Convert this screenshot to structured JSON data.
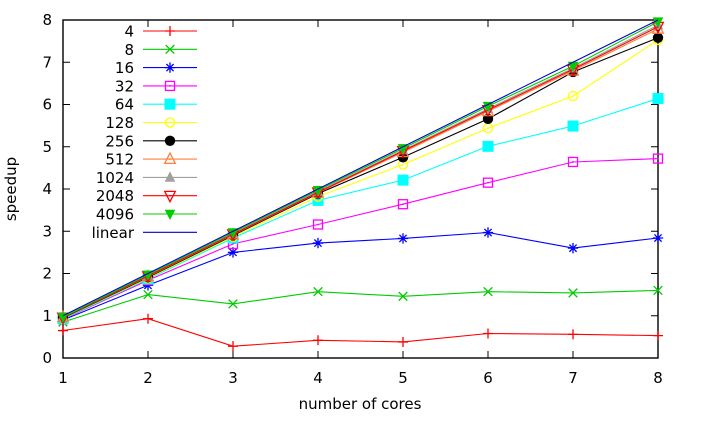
{
  "chart_data": {
    "type": "line",
    "title": "",
    "xlabel": "number of cores",
    "ylabel": "speedup",
    "xlim": [
      1,
      8
    ],
    "ylim": [
      0,
      8
    ],
    "xticks": [
      1,
      2,
      3,
      4,
      5,
      6,
      7,
      8
    ],
    "yticks": [
      0,
      1,
      2,
      3,
      4,
      5,
      6,
      7,
      8
    ],
    "grid": false,
    "legend_position": "top-left-inside",
    "axis_color": "#000000",
    "background_color": "#ffffff",
    "x": [
      1,
      2,
      3,
      4,
      5,
      6,
      7,
      8
    ],
    "series": [
      {
        "name": "4",
        "color": "#ff0000",
        "marker": "plus",
        "values": [
          0.65,
          0.93,
          0.28,
          0.42,
          0.38,
          0.58,
          0.56,
          0.53
        ]
      },
      {
        "name": "8",
        "color": "#00cc00",
        "marker": "cross",
        "values": [
          0.85,
          1.5,
          1.28,
          1.57,
          1.46,
          1.57,
          1.54,
          1.6
        ]
      },
      {
        "name": "16",
        "color": "#0000ff",
        "marker": "asterisk",
        "values": [
          0.9,
          1.72,
          2.5,
          2.72,
          2.83,
          2.97,
          2.6,
          2.84
        ]
      },
      {
        "name": "32",
        "color": "#ff00ff",
        "marker": "square-open",
        "values": [
          0.92,
          1.84,
          2.7,
          3.16,
          3.64,
          4.15,
          4.64,
          4.72
        ]
      },
      {
        "name": "64",
        "color": "#00ffff",
        "marker": "square-filled",
        "values": [
          0.93,
          1.87,
          2.84,
          3.73,
          4.21,
          5.01,
          5.49,
          6.14
        ]
      },
      {
        "name": "128",
        "color": "#ffff00",
        "marker": "circle-open",
        "values": [
          0.94,
          1.89,
          2.87,
          3.82,
          4.58,
          5.44,
          6.2,
          7.53
        ]
      },
      {
        "name": "256",
        "color": "#000000",
        "marker": "circle-filled",
        "values": [
          0.95,
          1.91,
          2.9,
          3.89,
          4.75,
          5.66,
          6.77,
          7.58
        ]
      },
      {
        "name": "512",
        "color": "#ff7f40",
        "marker": "triangle-up-open",
        "values": [
          0.96,
          1.93,
          2.92,
          3.91,
          4.87,
          5.84,
          6.8,
          7.79
        ]
      },
      {
        "name": "1024",
        "color": "#a0a0a0",
        "marker": "triangle-up-filled",
        "values": [
          0.97,
          1.95,
          2.94,
          3.94,
          4.92,
          5.9,
          6.86,
          7.88
        ]
      },
      {
        "name": "2048",
        "color": "#ff0000",
        "marker": "triangle-down-open",
        "values": [
          0.96,
          1.94,
          2.93,
          3.92,
          4.9,
          5.87,
          6.83,
          7.84
        ]
      },
      {
        "name": "4096",
        "color": "#00cc00",
        "marker": "triangle-down-filled",
        "values": [
          0.97,
          1.97,
          2.97,
          3.97,
          4.96,
          5.96,
          6.91,
          7.96
        ]
      },
      {
        "name": "linear",
        "color": "#0000cd",
        "marker": "none",
        "values": [
          1,
          2,
          3,
          4,
          5,
          6,
          7,
          8
        ]
      }
    ]
  }
}
